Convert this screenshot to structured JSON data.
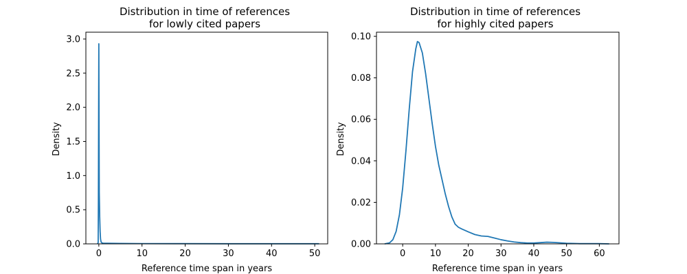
{
  "chart_data": [
    {
      "type": "line",
      "title": "Distribution in time of references\nfor lowly cited papers",
      "xlabel": "Reference time span in years",
      "ylabel": "Density",
      "xlim": [
        -3,
        53
      ],
      "ylim": [
        0,
        3.1
      ],
      "xticks": [
        0,
        10,
        20,
        30,
        40,
        50
      ],
      "yticks": [
        0.0,
        0.5,
        1.0,
        1.5,
        2.0,
        2.5,
        3.0
      ],
      "xtick_labels": [
        "0",
        "10",
        "20",
        "30",
        "40",
        "50"
      ],
      "ytick_labels": [
        "0.0",
        "0.5",
        "1.0",
        "1.5",
        "2.0",
        "2.5",
        "3.0"
      ],
      "grid": false,
      "color": "#1f77b4",
      "series": [
        {
          "x": [
            -0.3,
            -0.15,
            -0.1,
            -0.05,
            0.0,
            0.05,
            0.1,
            0.2,
            0.3,
            0.4,
            0.5,
            0.6,
            0.8,
            1.0,
            2.0,
            5.0,
            10.0,
            20.0,
            30.0,
            40.0,
            51.0
          ],
          "y": [
            0.0,
            0.02,
            0.6,
            1.8,
            2.93,
            1.8,
            0.75,
            0.4,
            0.18,
            0.07,
            0.035,
            0.02,
            0.012,
            0.01,
            0.008,
            0.006,
            0.004,
            0.003,
            0.002,
            0.002,
            0.002
          ]
        }
      ]
    },
    {
      "type": "line",
      "title": "Distribution in time of references\nfor highly cited papers",
      "xlabel": "Reference time span in years",
      "ylabel": "Density",
      "xlim": [
        -8,
        66
      ],
      "ylim": [
        0,
        0.102
      ],
      "xticks": [
        0,
        10,
        20,
        30,
        40,
        50,
        60
      ],
      "yticks": [
        0.0,
        0.02,
        0.04,
        0.06,
        0.08,
        0.1
      ],
      "xtick_labels": [
        "0",
        "10",
        "20",
        "30",
        "40",
        "50",
        "60"
      ],
      "ytick_labels": [
        "0.00",
        "0.02",
        "0.04",
        "0.06",
        "0.08",
        "0.10"
      ],
      "grid": false,
      "color": "#1f77b4",
      "series": [
        {
          "x": [
            -5.5,
            -4,
            -3,
            -2,
            -1,
            0,
            1,
            2,
            3,
            4,
            4.5,
            5,
            6,
            7,
            8,
            9,
            10,
            11,
            12,
            13,
            14,
            15,
            16,
            17,
            18,
            20,
            22,
            24,
            26,
            28,
            30,
            32,
            34,
            36,
            38,
            40,
            42,
            44,
            46,
            48,
            50,
            52,
            54,
            56,
            58,
            60,
            63
          ],
          "y": [
            0.0,
            0.0005,
            0.002,
            0.006,
            0.014,
            0.027,
            0.045,
            0.065,
            0.083,
            0.094,
            0.0975,
            0.097,
            0.092,
            0.082,
            0.07,
            0.058,
            0.047,
            0.038,
            0.031,
            0.024,
            0.018,
            0.013,
            0.0095,
            0.008,
            0.0072,
            0.0058,
            0.0045,
            0.0038,
            0.0036,
            0.0028,
            0.002,
            0.0014,
            0.0009,
            0.0006,
            0.0004,
            0.0004,
            0.0006,
            0.0008,
            0.0007,
            0.0005,
            0.0003,
            0.0002,
            0.0001,
            0.0001,
            0.0001,
            0.0001,
            0.0
          ]
        }
      ]
    }
  ]
}
